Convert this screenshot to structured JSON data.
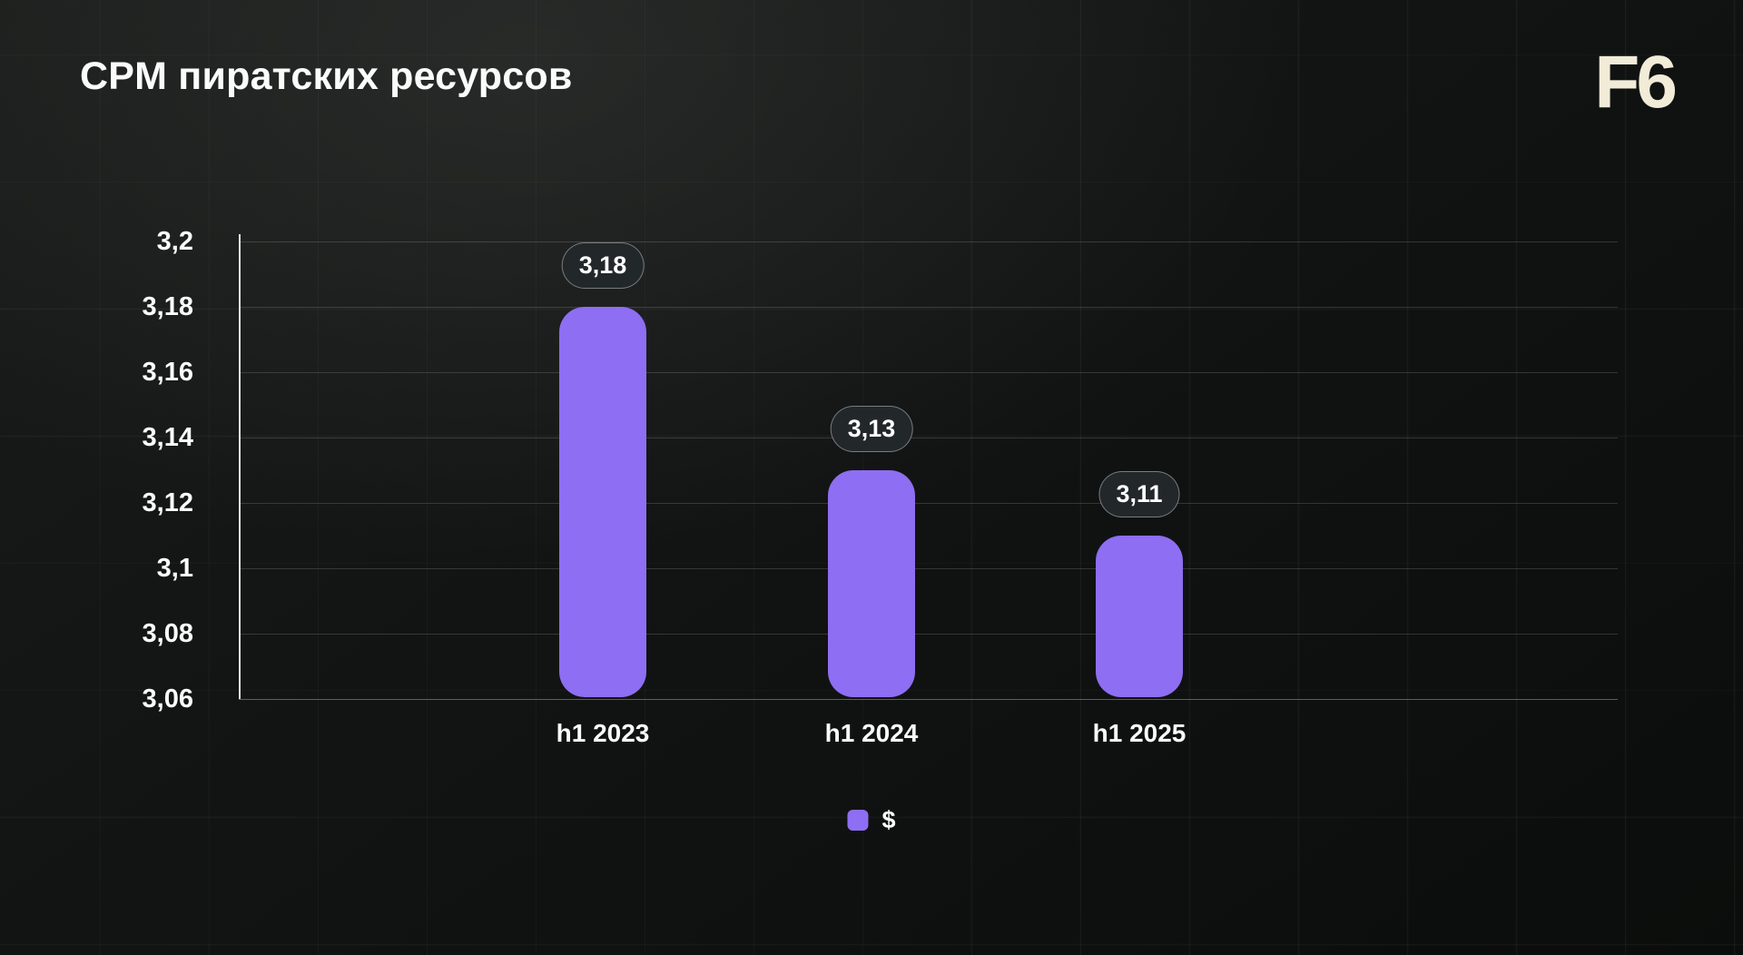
{
  "header": {
    "title": "CPM пиратских ресурсов",
    "logo": "F6"
  },
  "colors": {
    "bar": "#8e6ef2",
    "logo_text": "#f1ebd8",
    "badge_background": "#22272a",
    "background": "#111312",
    "text": "#ffffff"
  },
  "chart_data": {
    "type": "bar",
    "title": "CPM пиратских ресурсов",
    "categories": [
      "h1 2023",
      "h1 2024",
      "h1 2025"
    ],
    "series": [
      {
        "name": "$",
        "values": [
          3.18,
          3.13,
          3.11
        ],
        "color": "#8e6ef2"
      }
    ],
    "value_labels": [
      "3,18",
      "3,13",
      "3,11"
    ],
    "ylim": [
      3.06,
      3.2
    ],
    "yticks": [
      3.2,
      3.18,
      3.16,
      3.14,
      3.12,
      3.1,
      3.08,
      3.06
    ],
    "ytick_labels": [
      "3,2",
      "3,18",
      "3,16",
      "3,14",
      "3,12",
      "3,1",
      "3,08",
      "3,06"
    ],
    "grid": true,
    "legend": [
      {
        "label": "$",
        "color": "#8e6ef2"
      }
    ],
    "legend_position": "bottom-center"
  }
}
